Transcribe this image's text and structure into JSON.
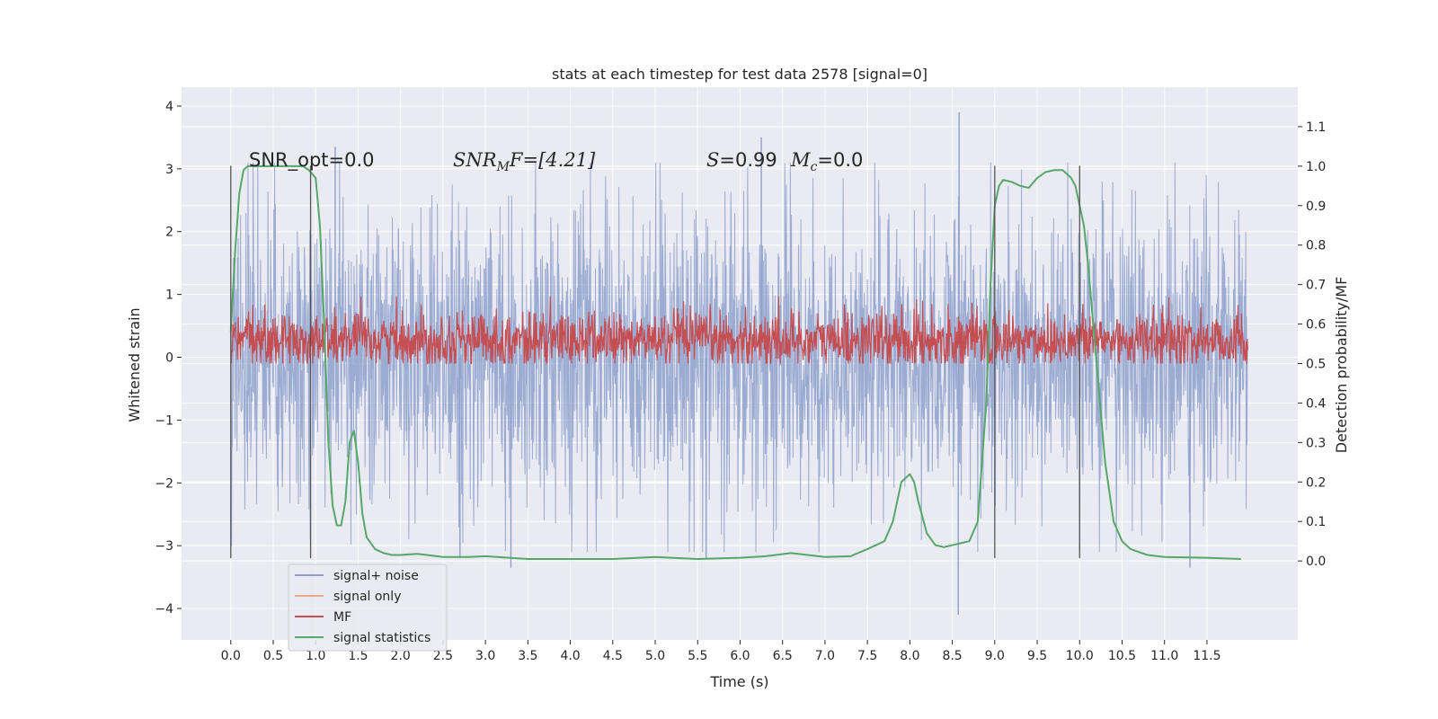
{
  "chart_data": {
    "type": "line",
    "title": "stats at each timestep for test data 2578 [signal=0]",
    "xlabel": "Time (s)",
    "ylabel": "Whitened strain",
    "y2label": "Detection probability/MF",
    "xlim": [
      -0.58,
      12.57
    ],
    "ylim": [
      -4.5,
      4.3
    ],
    "y2lim": [
      -0.2,
      1.2
    ],
    "x_ticks": [
      "0.0",
      "0.5",
      "1.0",
      "1.5",
      "2.0",
      "2.5",
      "3.0",
      "3.5",
      "4.0",
      "4.5",
      "5.0",
      "5.5",
      "6.0",
      "6.5",
      "7.0",
      "7.5",
      "8.0",
      "8.5",
      "9.0",
      "9.5",
      "10.0",
      "10.5",
      "11.0",
      "11.5"
    ],
    "y_ticks": [
      "4",
      "3",
      "2",
      "1",
      "0",
      "−1",
      "−2",
      "−3",
      "−4"
    ],
    "y2_ticks": [
      "1.1",
      "1.0",
      "0.9",
      "0.8",
      "0.7",
      "0.6",
      "0.5",
      "0.4",
      "0.3",
      "0.2",
      "0.1",
      "0.0"
    ],
    "grid": true,
    "legend_position": "lower-left",
    "annotations": {
      "snr_opt": "SNR_opt=0.0",
      "snr_mf_sym": "SNR",
      "snr_mf_sub": "M",
      "snr_mf_rest": "F=[4.21]",
      "s_sym": "S",
      "s_rest": "=0.99",
      "mc_sym": "M",
      "mc_sub": "c",
      "mc_rest": "=0.0"
    },
    "vertical_markers": [
      0.0,
      0.94,
      9.0,
      10.0
    ],
    "series": [
      {
        "name": "signal+ noise",
        "color": "#8da0cb",
        "axis": "left",
        "style": "noise",
        "x_range": [
          0.0,
          11.98
        ],
        "typical_range": [
          -1.5,
          1.5
        ],
        "extremes": [
          {
            "x": 8.58,
            "y": 3.9
          },
          {
            "x": 8.57,
            "y": -4.1
          },
          {
            "x": 6.25,
            "y": 3.5
          },
          {
            "x": 1.23,
            "y": 3.35
          },
          {
            "x": 3.3,
            "y": -3.35
          },
          {
            "x": 11.3,
            "y": -3.35
          },
          {
            "x": 2.7,
            "y": -3.2
          },
          {
            "x": 5.6,
            "y": -3.2
          }
        ]
      },
      {
        "name": "signal only",
        "color": "#e9a98a",
        "axis": "left",
        "values": []
      },
      {
        "name": "MF",
        "color": "#c44e52",
        "axis": "right",
        "style": "noise",
        "x_range": [
          0.0,
          11.98
        ],
        "typical_range": [
          0.52,
          0.6
        ],
        "value_range": [
          0.5,
          0.67
        ]
      },
      {
        "name": "signal statistics",
        "color": "#55a868",
        "axis": "right",
        "x": [
          0.0,
          0.05,
          0.1,
          0.15,
          0.2,
          0.3,
          0.5,
          0.7,
          0.85,
          0.92,
          1.0,
          1.05,
          1.1,
          1.15,
          1.2,
          1.25,
          1.3,
          1.35,
          1.4,
          1.45,
          1.5,
          1.55,
          1.6,
          1.7,
          1.8,
          1.9,
          2.0,
          2.2,
          2.5,
          2.8,
          3.0,
          3.5,
          4.0,
          4.5,
          5.0,
          5.5,
          6.0,
          6.3,
          6.6,
          7.0,
          7.3,
          7.5,
          7.6,
          7.7,
          7.8,
          7.9,
          8.0,
          8.05,
          8.1,
          8.2,
          8.3,
          8.4,
          8.5,
          8.6,
          8.7,
          8.8,
          8.9,
          8.95,
          9.0,
          9.05,
          9.1,
          9.2,
          9.3,
          9.4,
          9.5,
          9.6,
          9.7,
          9.8,
          9.9,
          9.95,
          10.0,
          10.05,
          10.1,
          10.2,
          10.3,
          10.4,
          10.5,
          10.6,
          10.8,
          11.0,
          11.5,
          11.9
        ],
        "values": [
          0.58,
          0.78,
          0.93,
          0.99,
          1.0,
          1.0,
          1.0,
          1.0,
          1.0,
          0.99,
          0.97,
          0.85,
          0.6,
          0.3,
          0.14,
          0.09,
          0.09,
          0.15,
          0.3,
          0.33,
          0.25,
          0.12,
          0.06,
          0.03,
          0.02,
          0.015,
          0.015,
          0.018,
          0.01,
          0.01,
          0.012,
          0.005,
          0.005,
          0.005,
          0.01,
          0.005,
          0.008,
          0.012,
          0.02,
          0.01,
          0.012,
          0.03,
          0.04,
          0.05,
          0.1,
          0.2,
          0.22,
          0.2,
          0.15,
          0.07,
          0.04,
          0.035,
          0.04,
          0.045,
          0.05,
          0.1,
          0.4,
          0.7,
          0.9,
          0.95,
          0.965,
          0.96,
          0.95,
          0.945,
          0.97,
          0.985,
          0.99,
          0.99,
          0.97,
          0.95,
          0.9,
          0.85,
          0.75,
          0.5,
          0.25,
          0.1,
          0.05,
          0.03,
          0.015,
          0.01,
          0.008,
          0.005
        ]
      }
    ]
  }
}
